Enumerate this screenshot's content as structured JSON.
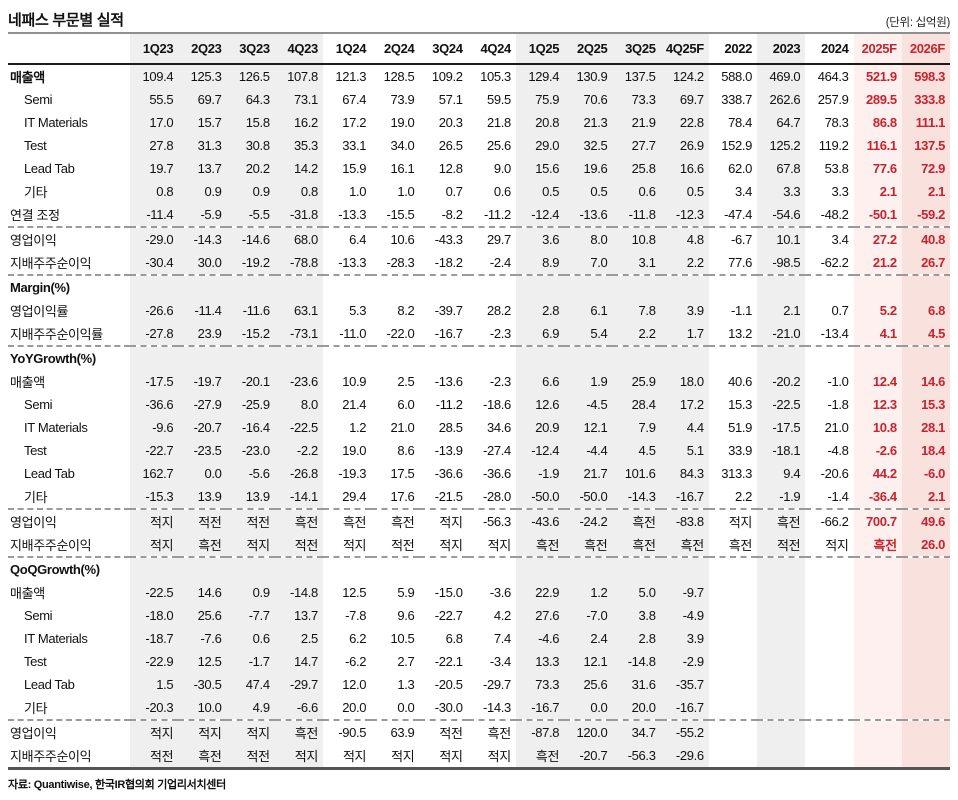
{
  "title": "네패스 부문별 실적",
  "unit_note": "(단위: 십억원)",
  "source_note": "자료: Quantiwise, 한국IR협의회 기업리서치센터",
  "colors": {
    "accent_red": "#c8232e",
    "band_gray": "#efefef",
    "band_pink_2025f": "#fdf0ee",
    "band_pink_2026f": "#f9e1de",
    "header_rule": "#1b1b1b"
  },
  "table": {
    "columns": [
      "1Q23",
      "2Q23",
      "3Q23",
      "4Q23",
      "1Q24",
      "2Q24",
      "3Q24",
      "4Q24",
      "1Q25",
      "2Q25",
      "3Q25",
      "4Q25F",
      "2022",
      "2023",
      "2024",
      "2025F",
      "2026F"
    ],
    "gray_cols": [
      0,
      1,
      2,
      3,
      8,
      9,
      10,
      11,
      13
    ],
    "pink_cols": [
      15,
      16
    ],
    "red_cols": [
      15,
      16
    ],
    "sections": [
      {
        "header": null,
        "rows": [
          {
            "label": "매출액",
            "bold": true,
            "indent": false,
            "dashed": false,
            "values": [
              "109.4",
              "125.3",
              "126.5",
              "107.8",
              "121.3",
              "128.5",
              "109.2",
              "105.3",
              "129.4",
              "130.9",
              "137.5",
              "124.2",
              "588.0",
              "469.0",
              "464.3",
              "521.9",
              "598.3"
            ]
          },
          {
            "label": "Semi",
            "bold": false,
            "indent": true,
            "dashed": false,
            "values": [
              "55.5",
              "69.7",
              "64.3",
              "73.1",
              "67.4",
              "73.9",
              "57.1",
              "59.5",
              "75.9",
              "70.6",
              "73.3",
              "69.7",
              "338.7",
              "262.6",
              "257.9",
              "289.5",
              "333.8"
            ]
          },
          {
            "label": "IT Materials",
            "bold": false,
            "indent": true,
            "dashed": false,
            "values": [
              "17.0",
              "15.7",
              "15.8",
              "16.2",
              "17.2",
              "19.0",
              "20.3",
              "21.8",
              "20.8",
              "21.3",
              "21.9",
              "22.8",
              "78.4",
              "64.7",
              "78.3",
              "86.8",
              "111.1"
            ]
          },
          {
            "label": "Test",
            "bold": false,
            "indent": true,
            "dashed": false,
            "values": [
              "27.8",
              "31.3",
              "30.8",
              "35.3",
              "33.1",
              "34.0",
              "26.5",
              "25.6",
              "29.0",
              "32.5",
              "27.7",
              "26.9",
              "152.9",
              "125.2",
              "119.2",
              "116.1",
              "137.5"
            ]
          },
          {
            "label": "Lead Tab",
            "bold": false,
            "indent": true,
            "dashed": false,
            "values": [
              "19.7",
              "13.7",
              "20.2",
              "14.2",
              "15.9",
              "16.1",
              "12.8",
              "9.0",
              "15.6",
              "19.6",
              "25.8",
              "16.6",
              "62.0",
              "67.8",
              "53.8",
              "77.6",
              "72.9"
            ]
          },
          {
            "label": "기타",
            "bold": false,
            "indent": true,
            "dashed": false,
            "values": [
              "0.8",
              "0.9",
              "0.9",
              "0.8",
              "1.0",
              "1.0",
              "0.7",
              "0.6",
              "0.5",
              "0.5",
              "0.6",
              "0.5",
              "3.4",
              "3.3",
              "3.3",
              "2.1",
              "2.1"
            ]
          },
          {
            "label": "연결 조정",
            "bold": false,
            "indent": false,
            "dashed": false,
            "values": [
              "-11.4",
              "-5.9",
              "-5.5",
              "-31.8",
              "-13.3",
              "-15.5",
              "-8.2",
              "-11.2",
              "-12.4",
              "-13.6",
              "-11.8",
              "-12.3",
              "-47.4",
              "-54.6",
              "-48.2",
              "-50.1",
              "-59.2"
            ]
          },
          {
            "label": "영업이익",
            "bold": false,
            "indent": false,
            "dashed": true,
            "values": [
              "-29.0",
              "-14.3",
              "-14.6",
              "68.0",
              "6.4",
              "10.6",
              "-43.3",
              "29.7",
              "3.6",
              "8.0",
              "10.8",
              "4.8",
              "-6.7",
              "10.1",
              "3.4",
              "27.2",
              "40.8"
            ]
          },
          {
            "label": "지배주주순이익",
            "bold": false,
            "indent": false,
            "dashed": false,
            "values": [
              "-30.4",
              "30.0",
              "-19.2",
              "-78.8",
              "-13.3",
              "-28.3",
              "-18.2",
              "-2.4",
              "8.9",
              "7.0",
              "3.1",
              "2.2",
              "77.6",
              "-98.5",
              "-62.2",
              "21.2",
              "26.7"
            ]
          }
        ]
      },
      {
        "header": "Margin(%)",
        "rows": [
          {
            "label": "영업이익률",
            "bold": false,
            "indent": false,
            "dashed": false,
            "values": [
              "-26.6",
              "-11.4",
              "-11.6",
              "63.1",
              "5.3",
              "8.2",
              "-39.7",
              "28.2",
              "2.8",
              "6.1",
              "7.8",
              "3.9",
              "-1.1",
              "2.1",
              "0.7",
              "5.2",
              "6.8"
            ]
          },
          {
            "label": "지배주주순이익률",
            "bold": false,
            "indent": false,
            "dashed": false,
            "values": [
              "-27.8",
              "23.9",
              "-15.2",
              "-73.1",
              "-11.0",
              "-22.0",
              "-16.7",
              "-2.3",
              "6.9",
              "5.4",
              "2.2",
              "1.7",
              "13.2",
              "-21.0",
              "-13.4",
              "4.1",
              "4.5"
            ]
          }
        ]
      },
      {
        "header": "YoYGrowth(%)",
        "rows": [
          {
            "label": "매출액",
            "bold": false,
            "indent": false,
            "dashed": false,
            "values": [
              "-17.5",
              "-19.7",
              "-20.1",
              "-23.6",
              "10.9",
              "2.5",
              "-13.6",
              "-2.3",
              "6.6",
              "1.9",
              "25.9",
              "18.0",
              "40.6",
              "-20.2",
              "-1.0",
              "12.4",
              "14.6"
            ]
          },
          {
            "label": "Semi",
            "bold": false,
            "indent": true,
            "dashed": false,
            "values": [
              "-36.6",
              "-27.9",
              "-25.9",
              "8.0",
              "21.4",
              "6.0",
              "-11.2",
              "-18.6",
              "12.6",
              "-4.5",
              "28.4",
              "17.2",
              "15.3",
              "-22.5",
              "-1.8",
              "12.3",
              "15.3"
            ]
          },
          {
            "label": "IT Materials",
            "bold": false,
            "indent": true,
            "dashed": false,
            "values": [
              "-9.6",
              "-20.7",
              "-16.4",
              "-22.5",
              "1.2",
              "21.0",
              "28.5",
              "34.6",
              "20.9",
              "12.1",
              "7.9",
              "4.4",
              "51.9",
              "-17.5",
              "21.0",
              "10.8",
              "28.1"
            ]
          },
          {
            "label": "Test",
            "bold": false,
            "indent": true,
            "dashed": false,
            "values": [
              "-22.7",
              "-23.5",
              "-23.0",
              "-2.2",
              "19.0",
              "8.6",
              "-13.9",
              "-27.4",
              "-12.4",
              "-4.4",
              "4.5",
              "5.1",
              "33.9",
              "-18.1",
              "-4.8",
              "-2.6",
              "18.4"
            ]
          },
          {
            "label": "Lead Tab",
            "bold": false,
            "indent": true,
            "dashed": false,
            "values": [
              "162.7",
              "0.0",
              "-5.6",
              "-26.8",
              "-19.3",
              "17.5",
              "-36.6",
              "-36.6",
              "-1.9",
              "21.7",
              "101.6",
              "84.3",
              "313.3",
              "9.4",
              "-20.6",
              "44.2",
              "-6.0"
            ]
          },
          {
            "label": "기타",
            "bold": false,
            "indent": true,
            "dashed": false,
            "values": [
              "-15.3",
              "13.9",
              "13.9",
              "-14.1",
              "29.4",
              "17.6",
              "-21.5",
              "-28.0",
              "-50.0",
              "-50.0",
              "-14.3",
              "-16.7",
              "2.2",
              "-1.9",
              "-1.4",
              "-36.4",
              "2.1"
            ]
          },
          {
            "label": "영업이익",
            "bold": false,
            "indent": false,
            "dashed": true,
            "values": [
              "적지",
              "적전",
              "적전",
              "흑전",
              "흑전",
              "흑전",
              "적지",
              "-56.3",
              "-43.6",
              "-24.2",
              "흑전",
              "-83.8",
              "적지",
              "흑전",
              "-66.2",
              "700.7",
              "49.6"
            ]
          },
          {
            "label": "지배주주순이익",
            "bold": false,
            "indent": false,
            "dashed": false,
            "values": [
              "적지",
              "흑전",
              "적지",
              "적전",
              "적지",
              "적전",
              "적지",
              "적지",
              "흑전",
              "흑전",
              "흑전",
              "흑전",
              "흑전",
              "적전",
              "적지",
              "흑전",
              "26.0"
            ]
          }
        ]
      },
      {
        "header": "QoQGrowth(%)",
        "rows": [
          {
            "label": "매출액",
            "bold": false,
            "indent": false,
            "dashed": false,
            "values": [
              "-22.5",
              "14.6",
              "0.9",
              "-14.8",
              "12.5",
              "5.9",
              "-15.0",
              "-3.6",
              "22.9",
              "1.2",
              "5.0",
              "-9.7",
              "",
              "",
              "",
              "",
              ""
            ]
          },
          {
            "label": "Semi",
            "bold": false,
            "indent": true,
            "dashed": false,
            "values": [
              "-18.0",
              "25.6",
              "-7.7",
              "13.7",
              "-7.8",
              "9.6",
              "-22.7",
              "4.2",
              "27.6",
              "-7.0",
              "3.8",
              "-4.9",
              "",
              "",
              "",
              "",
              ""
            ]
          },
          {
            "label": "IT Materials",
            "bold": false,
            "indent": true,
            "dashed": false,
            "values": [
              "-18.7",
              "-7.6",
              "0.6",
              "2.5",
              "6.2",
              "10.5",
              "6.8",
              "7.4",
              "-4.6",
              "2.4",
              "2.8",
              "3.9",
              "",
              "",
              "",
              "",
              ""
            ]
          },
          {
            "label": "Test",
            "bold": false,
            "indent": true,
            "dashed": false,
            "values": [
              "-22.9",
              "12.5",
              "-1.7",
              "14.7",
              "-6.2",
              "2.7",
              "-22.1",
              "-3.4",
              "13.3",
              "12.1",
              "-14.8",
              "-2.9",
              "",
              "",
              "",
              "",
              ""
            ]
          },
          {
            "label": "Lead Tab",
            "bold": false,
            "indent": true,
            "dashed": false,
            "values": [
              "1.5",
              "-30.5",
              "47.4",
              "-29.7",
              "12.0",
              "1.3",
              "-20.5",
              "-29.7",
              "73.3",
              "25.6",
              "31.6",
              "-35.7",
              "",
              "",
              "",
              "",
              ""
            ]
          },
          {
            "label": "기타",
            "bold": false,
            "indent": true,
            "dashed": false,
            "values": [
              "-20.3",
              "10.0",
              "4.9",
              "-6.6",
              "20.0",
              "0.0",
              "-30.0",
              "-14.3",
              "-16.7",
              "0.0",
              "20.0",
              "-16.7",
              "",
              "",
              "",
              "",
              ""
            ]
          },
          {
            "label": "영업이익",
            "bold": false,
            "indent": false,
            "dashed": true,
            "values": [
              "적지",
              "적지",
              "적지",
              "흑전",
              "-90.5",
              "63.9",
              "적전",
              "흑전",
              "-87.8",
              "120.0",
              "34.7",
              "-55.2",
              "",
              "",
              "",
              "",
              ""
            ]
          },
          {
            "label": "지배주주순이익",
            "bold": false,
            "indent": false,
            "dashed": false,
            "values": [
              "적전",
              "흑전",
              "적전",
              "적지",
              "적지",
              "적지",
              "적지",
              "적지",
              "흑전",
              "-20.7",
              "-56.3",
              "-29.6",
              "",
              "",
              "",
              "",
              ""
            ]
          }
        ]
      }
    ]
  }
}
